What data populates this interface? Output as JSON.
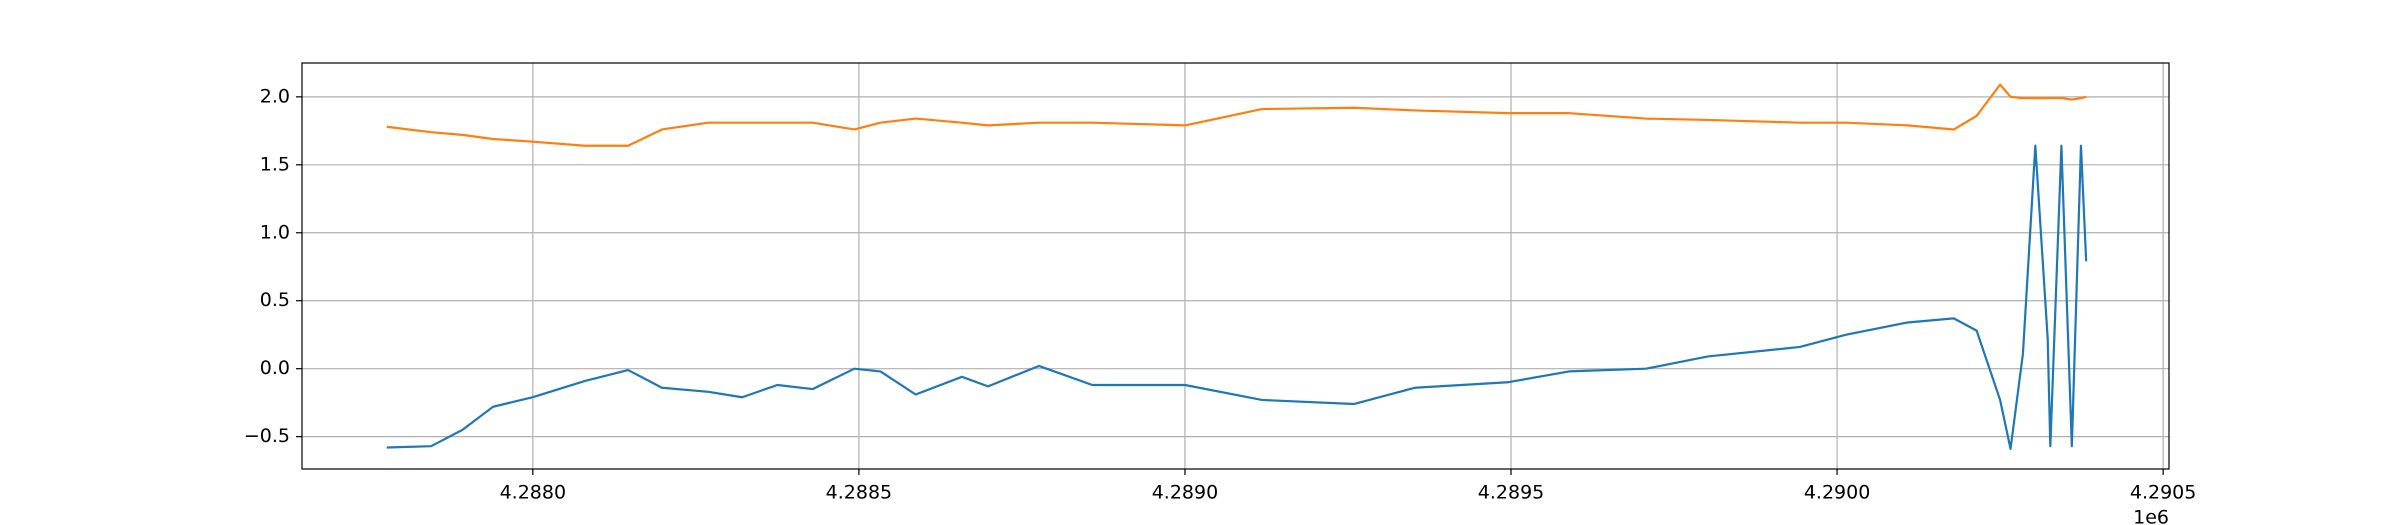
{
  "chart_data": {
    "type": "line",
    "x": [
      4287776,
      4287844,
      4287892,
      4287939,
      4288000,
      4288080,
      4288146,
      4288198,
      4288269,
      4288321,
      4288375,
      4288429,
      4288493,
      4288533,
      4288587,
      4288658,
      4288698,
      4288776,
      4288858,
      4289000,
      4289118,
      4289259,
      4289353,
      4289495,
      4289589,
      4289707,
      4289802,
      4289943,
      4290014,
      4290108,
      4290179,
      4290214,
      4290250,
      4290266,
      4290285,
      4290304,
      4290323,
      4290327,
      4290344,
      4290360,
      4290374,
      4290382
    ],
    "series": [
      {
        "color": "#1f77b4",
        "values": [
          -0.58,
          -0.57,
          -0.45,
          -0.28,
          -0.21,
          -0.09,
          -0.01,
          -0.14,
          -0.17,
          -0.21,
          -0.12,
          -0.15,
          0.0,
          -0.02,
          -0.19,
          -0.06,
          -0.13,
          0.02,
          -0.12,
          -0.12,
          -0.23,
          -0.26,
          -0.14,
          -0.1,
          -0.02,
          0.0,
          0.09,
          0.16,
          0.25,
          0.34,
          0.37,
          0.28,
          -0.23,
          -0.59,
          0.11,
          1.64,
          0.22,
          -0.57,
          1.64,
          -0.57,
          1.64,
          0.79
        ]
      },
      {
        "color": "#ff7f0e",
        "values": [
          1.78,
          1.74,
          1.72,
          1.69,
          1.67,
          1.64,
          1.64,
          1.76,
          1.81,
          1.81,
          1.81,
          1.81,
          1.76,
          1.81,
          1.84,
          1.81,
          1.79,
          1.81,
          1.81,
          1.79,
          1.91,
          1.92,
          1.9,
          1.88,
          1.88,
          1.84,
          1.83,
          1.81,
          1.81,
          1.79,
          1.76,
          1.86,
          2.09,
          2.0,
          1.99,
          1.99,
          1.99,
          1.99,
          1.99,
          1.98,
          1.99,
          2.0
        ]
      }
    ],
    "xlim": [
      4287646,
      4290509
    ],
    "xticks": [
      {
        "value": 4288000,
        "label": "4.2880"
      },
      {
        "value": 4288500,
        "label": "4.2885"
      },
      {
        "value": 4289000,
        "label": "4.2890"
      },
      {
        "value": 4289500,
        "label": "4.2895"
      },
      {
        "value": 4290000,
        "label": "4.2900"
      },
      {
        "value": 4290500,
        "label": "4.2905"
      }
    ],
    "x_offset_label": "1e6",
    "ylim": [
      -0.738,
      2.249
    ],
    "yticks": [
      {
        "value": -0.5,
        "label": "−0.5"
      },
      {
        "value": 0,
        "label": "0.0"
      },
      0.5,
      {
        "value": 1,
        "label": "1.0"
      },
      1.5,
      {
        "value": 2,
        "label": "2.0"
      }
    ],
    "grid": true
  }
}
